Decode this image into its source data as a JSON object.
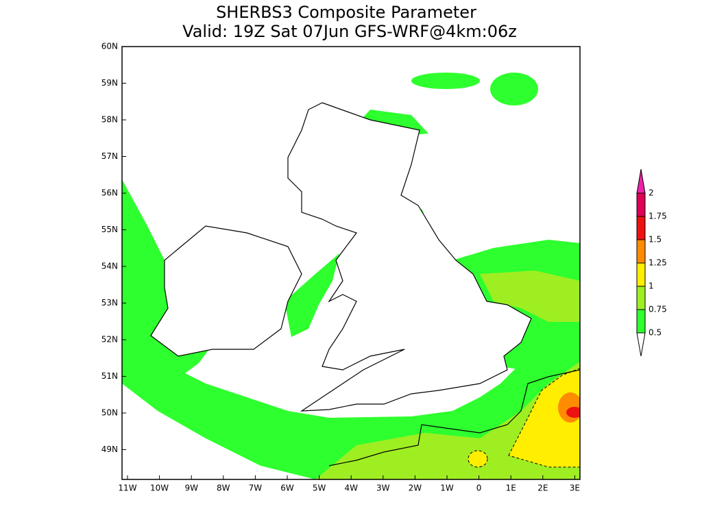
{
  "title": [
    "SHERBS3 Composite Parameter",
    "Valid: 19Z Sat 07Jun GFS-WRF@4km:06z"
  ],
  "lat_labels": [
    "60N",
    "59N",
    "58N",
    "57N",
    "56N",
    "55N",
    "54N",
    "53N",
    "52N",
    "51N",
    "50N",
    "49N"
  ],
  "lon_labels": [
    "11W",
    "10W",
    "9W",
    "8W",
    "7W",
    "6W",
    "5W",
    "4W",
    "3W",
    "2W",
    "1W",
    "0",
    "1E",
    "2E",
    "3E"
  ],
  "colorbar": {
    "labels": [
      "0.5",
      "0.75",
      "1",
      "1.25",
      "1.5",
      "1.75",
      "2"
    ],
    "colors": [
      "#2eff2e",
      "#9eee22",
      "#ffee00",
      "#ff8c00",
      "#ee1111",
      "#dd0055",
      "#ee22aa"
    ]
  }
}
